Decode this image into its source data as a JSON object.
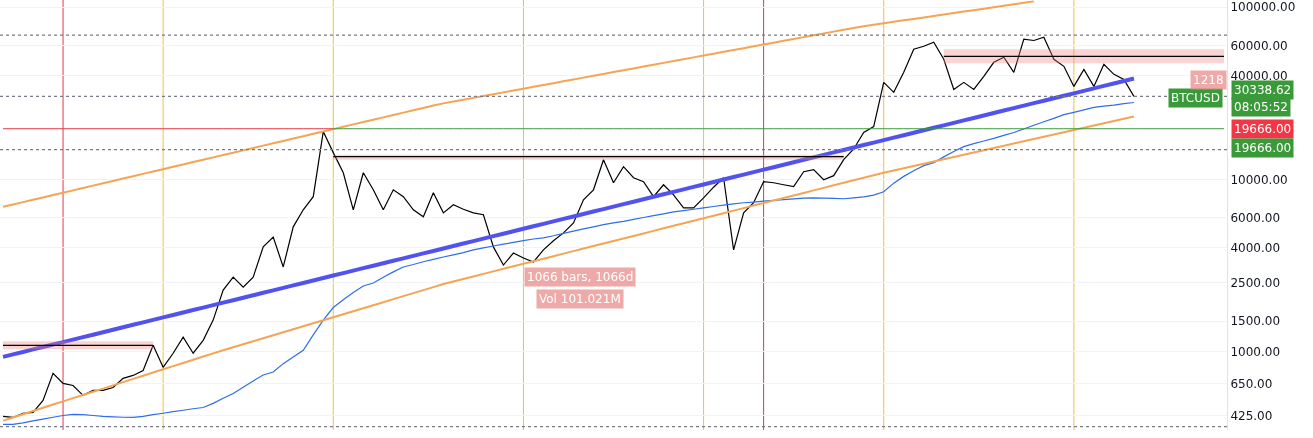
{
  "chart_data": {
    "type": "line",
    "categories": [
      null,
      null,
      null,
      null,
      null,
      null,
      null,
      null,
      null,
      null,
      null,
      null,
      null,
      null,
      null,
      null,
      null,
      null,
      null,
      null,
      null,
      null,
      null,
      null,
      null,
      null,
      null,
      null,
      null,
      null,
      null,
      null,
      null,
      null,
      null,
      null,
      null,
      null,
      null,
      null,
      null,
      null,
      null,
      null,
      null,
      null,
      null,
      null,
      null,
      null,
      null,
      null,
      null,
      null,
      null,
      null,
      null,
      null,
      null,
      null,
      null,
      null,
      null,
      null,
      null,
      null,
      null,
      null,
      null,
      null,
      null,
      null,
      null,
      null,
      null,
      null,
      null,
      null,
      null,
      null,
      null,
      null,
      null,
      null,
      null,
      null,
      null,
      null,
      null,
      null,
      null,
      null,
      null,
      null,
      null,
      null,
      null,
      null,
      null,
      null,
      null,
      null,
      null,
      null,
      null,
      null,
      null,
      null,
      null,
      null,
      null,
      null,
      null,
      null,
      null,
      null,
      null,
      null,
      null,
      null,
      null,
      null,
      null
    ],
    "series": [
      {
        "color": "#000000",
        "values": [
          420,
          414,
          437,
          443,
          520,
          747,
          653,
          635,
          556,
          594,
          594,
          618,
          698,
          726,
          776,
          1086,
          809,
          977,
          1211,
          977,
          1161,
          1521,
          2274,
          2705,
          2366,
          2705,
          4050,
          4624,
          3097,
          5297,
          6651,
          7925,
          18930,
          14290,
          10920,
          6651,
          10920,
          8690,
          6651,
          8690,
          7925,
          6651,
          6053,
          8350,
          6383,
          7112,
          6700,
          6383,
          6223,
          4050,
          3177,
          3733,
          3491,
          3311,
          3890,
          4400,
          4887,
          5585,
          7603,
          8690,
          13000,
          9550,
          11840,
          10210,
          9690,
          7925,
          9300,
          8130,
          6830,
          6830,
          7810,
          9000,
          10210,
          3890,
          6383,
          7310,
          9690,
          9550,
          9300,
          9060,
          11070,
          11380,
          9950,
          10500,
          13000,
          15000,
          18700,
          20260,
          36560,
          31990,
          41800,
          56920,
          59290,
          62520,
          49770,
          33270,
          36560,
          33270,
          39630,
          47800,
          51140,
          41800,
          65120,
          64000,
          66830,
          49770,
          45310,
          34640,
          43510,
          34640,
          46540,
          40710,
          38040,
          30338.62,
          null,
          null,
          null,
          null,
          null,
          null,
          null,
          null,
          null
        ]
      },
      {
        "color": "#2f6ee8",
        "values": [
          377,
          377,
          385,
          395,
          405,
          415,
          425,
          431,
          430,
          425,
          420,
          417,
          415,
          414,
          420,
          430,
          438,
          447,
          456,
          465,
          473,
          500,
          535,
          570,
          620,
          675,
          730,
          760,
          850,
          930,
          1016,
          1250,
          1521,
          1800,
          2000,
          2200,
          2400,
          2500,
          2700,
          2900,
          3097,
          3200,
          3320,
          3430,
          3540,
          3640,
          3750,
          3890,
          4000,
          4100,
          4200,
          4300,
          4400,
          4500,
          4571,
          4700,
          4850,
          5000,
          5150,
          5300,
          5450,
          5585,
          5700,
          5850,
          6000,
          6150,
          6300,
          6471,
          6580,
          6700,
          6820,
          6950,
          7080,
          7200,
          7310,
          7380,
          7460,
          7540,
          7620,
          7700,
          7780,
          7810,
          7780,
          7740,
          7710,
          7800,
          7900,
          8100,
          8470,
          9500,
          10400,
          11200,
          12000,
          12500,
          13500,
          14500,
          15490,
          16100,
          16700,
          17300,
          18000,
          18700,
          19600,
          20600,
          21600,
          22600,
          23770,
          24500,
          25300,
          26140,
          26600,
          27000,
          27500,
          27940,
          null,
          null,
          null,
          null,
          null,
          null,
          null,
          null,
          null
        ]
      },
      {
        "color": "#5252ee",
        "values": [
          931,
          962,
          994,
          1028,
          1062,
          1098,
          1134,
          1172,
          1212,
          1252,
          1294,
          1338,
          1382,
          1429,
          1477,
          1526,
          1577,
          1630,
          1685,
          1741,
          1799,
          1860,
          1922,
          1986,
          2053,
          2121,
          2192,
          2266,
          2342,
          2420,
          2501,
          2585,
          2671,
          2761,
          2853,
          2949,
          3047,
          3149,
          3255,
          3364,
          3476,
          3593,
          3713,
          3837,
          3966,
          4099,
          4236,
          4378,
          4524,
          4676,
          4832,
          4994,
          5161,
          5334,
          5513,
          5697,
          5888,
          6085,
          6289,
          6499,
          6717,
          6942,
          7174,
          7414,
          7663,
          7919,
          8184,
          8459,
          8742,
          9035,
          9337,
          9650,
          9973,
          10310,
          10650,
          11010,
          11380,
          11760,
          12150,
          12560,
          12980,
          13410,
          13860,
          14330,
          14810,
          15300,
          15810,
          16340,
          16890,
          17460,
          18040,
          18650,
          19270,
          19920,
          20580,
          21270,
          21980,
          22720,
          23480,
          24270,
          25080,
          25920,
          26790,
          27680,
          28610,
          29570,
          30560,
          31580,
          32640,
          33730,
          34860,
          36030,
          37230,
          38480,
          null,
          null,
          null,
          null,
          null,
          null,
          null,
          null,
          null
        ]
      },
      {
        "color": "#f5a454",
        "values": [
          6920,
          7141,
          7370,
          7605,
          7849,
          8100,
          8359,
          8626,
          8902,
          9187,
          9481,
          9784,
          10100,
          10420,
          10750,
          11100,
          11450,
          11820,
          12200,
          12590,
          12990,
          13410,
          13840,
          14280,
          14730,
          15210,
          15690,
          16200,
          16710,
          17250,
          17800,
          18370,
          18960,
          19560,
          20190,
          20840,
          21500,
          22190,
          22900,
          23630,
          24390,
          25170,
          25970,
          26800,
          27600,
          28290,
          28990,
          29710,
          30450,
          31210,
          31990,
          32790,
          33610,
          34440,
          35300,
          36180,
          37080,
          38010,
          38960,
          39930,
          40920,
          41940,
          42990,
          44060,
          45160,
          46280,
          47440,
          48620,
          49830,
          51070,
          52350,
          53650,
          54990,
          56360,
          57760,
          59200,
          60670,
          62180,
          63730,
          65320,
          66950,
          68610,
          70320,
          72070,
          73870,
          75710,
          77500,
          79030,
          80580,
          82170,
          83790,
          85440,
          87120,
          88840,
          90590,
          92370,
          94190,
          96050,
          97940,
          99870,
          101800,
          103800,
          105900,
          108000,
          null,
          null,
          null,
          null,
          null,
          null,
          null,
          null,
          null,
          null,
          null,
          null,
          null,
          null,
          null,
          null,
          null,
          null,
          null
        ]
      },
      {
        "color": "#f5a454",
        "values": [
          397,
          414,
          432,
          451,
          471,
          492,
          513,
          536,
          559,
          584,
          609,
          636,
          664,
          693,
          723,
          755,
          788,
          822,
          858,
          895,
          935,
          975,
          1016,
          1058,
          1101,
          1146,
          1193,
          1242,
          1293,
          1347,
          1402,
          1459,
          1519,
          1582,
          1647,
          1714,
          1785,
          1858,
          1934,
          2014,
          2097,
          2183,
          2272,
          2366,
          2466,
          2551,
          2639,
          2729,
          2823,
          2920,
          3021,
          3125,
          3232,
          3344,
          3459,
          3578,
          3701,
          3828,
          3960,
          4096,
          4237,
          4383,
          4534,
          4690,
          4851,
          5018,
          5191,
          5370,
          5554,
          5745,
          5943,
          6148,
          6359,
          6578,
          6804,
          7038,
          7280,
          7531,
          7790,
          8058,
          8335,
          8622,
          8918,
          9225,
          9542,
          9871,
          10210,
          10560,
          10920,
          11250,
          11600,
          11950,
          12320,
          12690,
          13080,
          13480,
          13890,
          14320,
          14760,
          15210,
          15670,
          16150,
          16650,
          17160,
          17680,
          18220,
          18780,
          19350,
          19950,
          20560,
          21190,
          21830,
          22500,
          23190,
          null,
          null,
          null,
          null,
          null,
          null,
          null,
          null,
          null
        ]
      },
      {
        "color": "#000000",
        "values": [
          1086,
          1086,
          1086,
          1086,
          1086,
          1086,
          1086,
          1086,
          1086,
          1086,
          1086,
          1086,
          1086,
          1086,
          1086,
          1086,
          null,
          null,
          null,
          null,
          null,
          null,
          null,
          null,
          null,
          null,
          null,
          null,
          null,
          null,
          null,
          null,
          null,
          null,
          null,
          null,
          null,
          null,
          null,
          null,
          null,
          null,
          null,
          null,
          null,
          null,
          null,
          null,
          null,
          null,
          null,
          null,
          null,
          null,
          null,
          null,
          null,
          null,
          null,
          null,
          null,
          null,
          null,
          null,
          null,
          null,
          null,
          null,
          null,
          null,
          null,
          null,
          null,
          null,
          null,
          null,
          null,
          null,
          null,
          null,
          null,
          null,
          null,
          null,
          null,
          null,
          null,
          null,
          null,
          null,
          null,
          null,
          null,
          null,
          null,
          null,
          null,
          null,
          null,
          null,
          null,
          null,
          null,
          null,
          null,
          null,
          null,
          null,
          null,
          null,
          null,
          null,
          null,
          null,
          null,
          null,
          null,
          null,
          null,
          null,
          null,
          null,
          null
        ],
        "lower": [
          1030,
          1030,
          1030,
          1030,
          1030,
          1030,
          1030,
          1030,
          1030,
          1030,
          1030,
          1030,
          1030,
          1030,
          1030,
          1030,
          null,
          null,
          null,
          null,
          null,
          null,
          null,
          null,
          null,
          null,
          null,
          null,
          null,
          null,
          null,
          null,
          null,
          null,
          null,
          null,
          null,
          null,
          null,
          null,
          null,
          null,
          null,
          null,
          null,
          null,
          null,
          null,
          null,
          null,
          null,
          null,
          null,
          null,
          null,
          null,
          null,
          null,
          null,
          null,
          null,
          null,
          null,
          null,
          null,
          null,
          null,
          null,
          null,
          null,
          null,
          null,
          null,
          null,
          null,
          null,
          null,
          null,
          null,
          null,
          null,
          null,
          null,
          null,
          null,
          null,
          null,
          null,
          null,
          null,
          null,
          null,
          null,
          null,
          null,
          null,
          null,
          null,
          null,
          null,
          null,
          null,
          null,
          null,
          null,
          null,
          null,
          null,
          null,
          null,
          null,
          null,
          null,
          null,
          null,
          null,
          null,
          null,
          null,
          null,
          null,
          null,
          null
        ],
        "upper": [
          1148,
          1148,
          1148,
          1148,
          1148,
          1148,
          1148,
          1148,
          1148,
          1148,
          1148,
          1148,
          1148,
          1148,
          1148,
          1148,
          null,
          null,
          null,
          null,
          null,
          null,
          null,
          null,
          null,
          null,
          null,
          null,
          null,
          null,
          null,
          null,
          null,
          null,
          null,
          null,
          null,
          null,
          null,
          null,
          null,
          null,
          null,
          null,
          null,
          null,
          null,
          null,
          null,
          null,
          null,
          null,
          null,
          null,
          null,
          null,
          null,
          null,
          null,
          null,
          null,
          null,
          null,
          null,
          null,
          null,
          null,
          null,
          null,
          null,
          null,
          null,
          null,
          null,
          null,
          null,
          null,
          null,
          null,
          null,
          null,
          null,
          null,
          null,
          null,
          null,
          null,
          null,
          null,
          null,
          null,
          null,
          null,
          null,
          null,
          null,
          null,
          null,
          null,
          null,
          null,
          null,
          null,
          null,
          null,
          null,
          null,
          null,
          null,
          null,
          null,
          null,
          null,
          null,
          null,
          null,
          null,
          null,
          null,
          null,
          null,
          null,
          null
        ]
      },
      {
        "color": "#000000",
        "values": [
          null,
          null,
          null,
          null,
          null,
          null,
          null,
          null,
          null,
          null,
          null,
          null,
          null,
          null,
          null,
          null,
          null,
          null,
          null,
          null,
          null,
          null,
          null,
          null,
          null,
          null,
          null,
          null,
          null,
          null,
          null,
          null,
          null,
          13550,
          13550,
          13550,
          13550,
          13550,
          13550,
          13550,
          13550,
          13550,
          13550,
          13550,
          13550,
          13550,
          13550,
          13550,
          13550,
          13550,
          13550,
          13550,
          13550,
          13550,
          13550,
          13550,
          13550,
          13550,
          13550,
          13550,
          13550,
          13550,
          13550,
          13550,
          13550,
          13550,
          13550,
          13550,
          13550,
          13550,
          13550,
          13550,
          13550,
          13550,
          13550,
          13550,
          13550,
          13550,
          13550,
          13550,
          13550,
          13550,
          13550,
          13550,
          13550,
          null,
          null,
          null,
          null,
          null,
          null,
          null,
          null,
          null,
          null,
          null,
          null,
          null,
          null,
          null,
          null,
          null,
          null,
          null,
          null,
          null,
          null,
          null,
          null,
          null,
          null,
          null,
          null,
          null,
          null,
          null,
          null,
          null,
          null,
          null,
          null,
          null,
          null
        ],
        "lower": [
          null,
          null,
          null,
          null,
          null,
          null,
          null,
          null,
          null,
          null,
          null,
          null,
          null,
          null,
          null,
          null,
          null,
          null,
          null,
          null,
          null,
          null,
          null,
          null,
          null,
          null,
          null,
          null,
          null,
          null,
          null,
          null,
          null,
          13000,
          13000,
          13000,
          13000,
          13000,
          13000,
          13000,
          13000,
          13000,
          13000,
          13000,
          13000,
          13000,
          13000,
          13000,
          13000,
          13000,
          13000,
          13000,
          13000,
          13000,
          13000,
          13000,
          13000,
          13000,
          13000,
          13000,
          13000,
          13000,
          13000,
          13000,
          13000,
          13000,
          13000,
          13000,
          13000,
          13000,
          13000,
          13000,
          13000,
          13000,
          13000,
          13000,
          13000,
          13000,
          13000,
          13000,
          13000,
          13000,
          13000,
          13000,
          13000,
          null,
          null,
          null,
          null,
          null,
          null,
          null,
          null,
          null,
          null,
          null,
          null,
          null,
          null,
          null,
          null,
          null,
          null,
          null,
          null,
          null,
          null,
          null,
          null,
          null,
          null,
          null,
          null,
          null,
          null,
          null,
          null,
          null,
          null,
          null,
          null,
          null,
          null
        ],
        "upper": [
          null,
          null,
          null,
          null,
          null,
          null,
          null,
          null,
          null,
          null,
          null,
          null,
          null,
          null,
          null,
          null,
          null,
          null,
          null,
          null,
          null,
          null,
          null,
          null,
          null,
          null,
          null,
          null,
          null,
          null,
          null,
          null,
          null,
          13900,
          13900,
          13900,
          13900,
          13900,
          13900,
          13900,
          13900,
          13900,
          13900,
          13900,
          13900,
          13900,
          13900,
          13900,
          13900,
          13900,
          13900,
          13900,
          13900,
          13900,
          13900,
          13900,
          13900,
          13900,
          13900,
          13900,
          13900,
          13900,
          13900,
          13900,
          13900,
          13900,
          13900,
          13900,
          13900,
          13900,
          13900,
          13900,
          13900,
          13900,
          13900,
          13900,
          13900,
          13900,
          13900,
          13900,
          13900,
          13900,
          13900,
          13900,
          13900,
          null,
          null,
          null,
          null,
          null,
          null,
          null,
          null,
          null,
          null,
          null,
          null,
          null,
          null,
          null,
          null,
          null,
          null,
          null,
          null,
          null,
          null,
          null,
          null,
          null,
          null,
          null,
          null,
          null,
          null,
          null,
          null,
          null,
          null,
          null,
          null,
          null,
          null
        ]
      },
      {
        "color": "#000000",
        "values": [
          null,
          null,
          null,
          null,
          null,
          null,
          null,
          null,
          null,
          null,
          null,
          null,
          null,
          null,
          null,
          null,
          null,
          null,
          null,
          null,
          null,
          null,
          null,
          null,
          null,
          null,
          null,
          null,
          null,
          null,
          null,
          null,
          null,
          null,
          null,
          null,
          null,
          null,
          null,
          null,
          null,
          null,
          null,
          null,
          null,
          null,
          null,
          null,
          null,
          null,
          null,
          null,
          null,
          null,
          null,
          null,
          null,
          null,
          null,
          null,
          null,
          null,
          null,
          null,
          null,
          null,
          null,
          null,
          null,
          null,
          null,
          null,
          null,
          null,
          null,
          null,
          null,
          null,
          null,
          null,
          null,
          null,
          null,
          null,
          null,
          null,
          null,
          null,
          null,
          null,
          null,
          null,
          null,
          null,
          51800,
          51800,
          51800,
          51800,
          51800,
          51800,
          51800,
          51800,
          51800,
          51800,
          51800,
          51800,
          51800,
          51800,
          51800,
          51800,
          51800,
          51800,
          51800,
          51800,
          51800,
          51800,
          51800,
          51800,
          51800,
          51800,
          51800,
          51800,
          51800
        ],
        "lower": [
          null,
          null,
          null,
          null,
          null,
          null,
          null,
          null,
          null,
          null,
          null,
          null,
          null,
          null,
          null,
          null,
          null,
          null,
          null,
          null,
          null,
          null,
          null,
          null,
          null,
          null,
          null,
          null,
          null,
          null,
          null,
          null,
          null,
          null,
          null,
          null,
          null,
          null,
          null,
          null,
          null,
          null,
          null,
          null,
          null,
          null,
          null,
          null,
          null,
          null,
          null,
          null,
          null,
          null,
          null,
          null,
          null,
          null,
          null,
          null,
          null,
          null,
          null,
          null,
          null,
          null,
          null,
          null,
          null,
          null,
          null,
          null,
          null,
          null,
          null,
          null,
          null,
          null,
          null,
          null,
          null,
          null,
          null,
          null,
          null,
          null,
          null,
          null,
          null,
          null,
          null,
          null,
          null,
          null,
          47200,
          47200,
          47200,
          47200,
          47200,
          47200,
          47200,
          47200,
          47200,
          47200,
          47200,
          47200,
          47200,
          47200,
          47200,
          47200,
          47200,
          47200,
          47200,
          47200,
          47200,
          47200,
          47200,
          47200,
          47200,
          47200,
          47200,
          47200,
          47200
        ],
        "upper": [
          null,
          null,
          null,
          null,
          null,
          null,
          null,
          null,
          null,
          null,
          null,
          null,
          null,
          null,
          null,
          null,
          null,
          null,
          null,
          null,
          null,
          null,
          null,
          null,
          null,
          null,
          null,
          null,
          null,
          null,
          null,
          null,
          null,
          null,
          null,
          null,
          null,
          null,
          null,
          null,
          null,
          null,
          null,
          null,
          null,
          null,
          null,
          null,
          null,
          null,
          null,
          null,
          null,
          null,
          null,
          null,
          null,
          null,
          null,
          null,
          null,
          null,
          null,
          null,
          null,
          null,
          null,
          null,
          null,
          null,
          null,
          null,
          null,
          null,
          null,
          null,
          null,
          null,
          null,
          null,
          null,
          null,
          null,
          null,
          null,
          null,
          null,
          null,
          null,
          null,
          null,
          null,
          null,
          null,
          56920,
          56920,
          56920,
          56920,
          56920,
          56920,
          56920,
          56920,
          56920,
          56920,
          56920,
          56920,
          56920,
          56920,
          56920,
          56920,
          56920,
          56920,
          56920,
          56920,
          56920,
          56920,
          56920,
          56920,
          56920,
          56920,
          56920,
          56920,
          56920
        ]
      },
      {
        "color": "#e53945",
        "values": [
          19666,
          19666,
          19666,
          19666,
          19666,
          19666,
          19666,
          19666,
          19666,
          19666,
          19666,
          19666,
          19666,
          19666,
          19666,
          19666,
          19666,
          19666,
          19666,
          19666,
          19666,
          19666,
          19666,
          19666,
          19666,
          19666,
          19666,
          19666,
          19666,
          19666,
          19666,
          19666,
          19666,
          19666,
          null,
          null,
          null,
          null,
          null,
          null,
          null,
          null,
          null,
          null,
          null,
          null,
          null,
          null,
          null,
          null,
          null,
          null,
          null,
          null,
          null,
          null,
          null,
          null,
          null,
          null,
          null,
          null,
          null,
          null,
          null,
          null,
          null,
          null,
          null,
          null,
          null,
          null,
          null,
          null,
          null,
          null,
          null,
          null,
          null,
          null,
          null,
          null,
          null,
          null,
          null,
          null,
          null,
          null,
          null,
          null,
          null,
          null,
          null,
          null,
          null,
          null,
          null,
          null,
          null,
          null,
          null,
          null,
          null,
          null,
          null,
          null,
          null,
          null,
          null,
          null,
          null,
          null,
          null,
          null,
          null,
          null,
          null,
          null,
          null,
          null,
          null,
          null,
          null
        ]
      },
      {
        "color": "#3a9a3a",
        "values": [
          null,
          null,
          null,
          null,
          null,
          null,
          null,
          null,
          null,
          null,
          null,
          null,
          null,
          null,
          null,
          null,
          null,
          null,
          null,
          null,
          null,
          null,
          null,
          null,
          null,
          null,
          null,
          null,
          null,
          null,
          null,
          null,
          null,
          19666,
          19666,
          19666,
          19666,
          19666,
          19666,
          19666,
          19666,
          19666,
          19666,
          19666,
          19666,
          19666,
          19666,
          19666,
          19666,
          19666,
          19666,
          19666,
          19666,
          19666,
          19666,
          19666,
          19666,
          19666,
          19666,
          19666,
          19666,
          19666,
          19666,
          19666,
          19666,
          19666,
          19666,
          19666,
          19666,
          19666,
          19666,
          19666,
          19666,
          19666,
          19666,
          19666,
          19666,
          19666,
          19666,
          19666,
          19666,
          19666,
          19666,
          19666,
          19666,
          19666,
          19666,
          19666,
          19666,
          19666,
          19666,
          19666,
          19666,
          19666,
          19666,
          19666,
          19666,
          19666,
          19666,
          19666,
          19666,
          19666,
          19666,
          19666,
          19666,
          19666,
          19666,
          19666,
          19666,
          19666,
          19666,
          19666,
          19666,
          19666,
          19666,
          19666,
          19666,
          19666,
          19666,
          19666,
          19666,
          19666,
          19666
        ]
      }
    ],
    "ylim": [
      350,
      110000
    ],
    "yticks": [
      {
        "value": 425,
        "label": "425.00"
      },
      {
        "value": 650,
        "label": "650.00"
      },
      {
        "value": 1000,
        "label": "1000.00"
      },
      {
        "value": 1500,
        "label": "1500.00"
      },
      {
        "value": 2500,
        "label": "2500.00"
      },
      {
        "value": 4000,
        "label": "4000.00"
      },
      {
        "value": 6000,
        "label": "6000.00"
      },
      {
        "value": 10000,
        "label": "10000.00"
      },
      {
        "value": 40000,
        "label": "40000.00"
      },
      {
        "value": 60000,
        "label": "60000.00"
      },
      {
        "value": 100000,
        "label": "100000.00"
      }
    ],
    "log": "y",
    "grid": true,
    "tick_labels": "y",
    "line_style": "solid",
    "ref_lines": [
      {
        "axis": "y",
        "value": 68700,
        "color": "#787b86",
        "line_style": "dotted"
      },
      {
        "axis": "y",
        "value": 30338.62,
        "color": "#787b86",
        "line_style": "dotted"
      },
      {
        "axis": "y",
        "value": 14880,
        "color": "#787b86",
        "line_style": "dotted"
      },
      {
        "axis": "y",
        "value": 366,
        "color": "#787b86",
        "line_style": "dotted"
      }
    ],
    "annotations": [
      "BTCUSD",
      "30338.62",
      "08:05:52",
      "19666.00",
      "19666.00",
      "1066 bars, 1066d",
      "Vol 101.021M",
      "1218"
    ]
  }
}
